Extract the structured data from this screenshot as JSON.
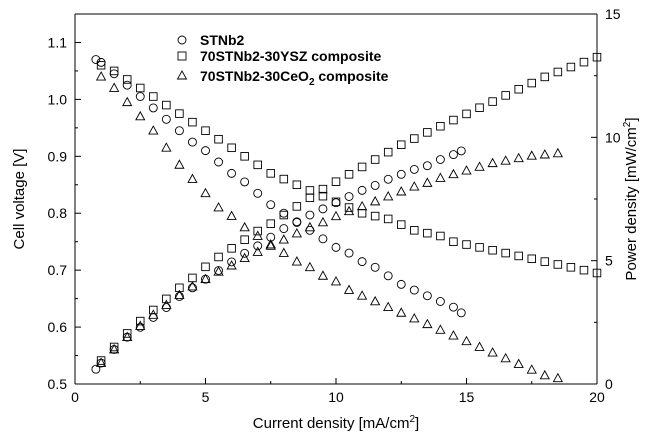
{
  "chart_data": {
    "type": "scatter",
    "xlabel": "Current density [mA/cm",
    "xlabel_sup": "2",
    "xlabel_end": "]",
    "ylabel_left": "Cell voltage [V]",
    "ylabel_right": "Power density [mW/cm",
    "ylabel_right_sup": "2",
    "ylabel_right_end": "]",
    "xlim": [
      0,
      20
    ],
    "ylim_left": [
      0.5,
      1.15
    ],
    "ylim_right": [
      0,
      15
    ],
    "x_ticks": [
      "0",
      "5",
      "10",
      "15",
      "20"
    ],
    "y_left_ticks": [
      "0.5",
      "0.6",
      "0.7",
      "0.8",
      "0.9",
      "1.0",
      "1.1"
    ],
    "y_right_ticks": [
      "0",
      "5",
      "10",
      "15"
    ],
    "grid": false,
    "legend_position": "top-left",
    "series": [
      {
        "name": "STNb2",
        "marker": "circle",
        "voltage": {
          "x": [
            0.8,
            1.0,
            1.5,
            2.0,
            2.5,
            3.0,
            3.5,
            4.0,
            4.5,
            5.0,
            5.5,
            6.0,
            6.5,
            7.0,
            7.5,
            8.0,
            8.5,
            9.0,
            9.5,
            10.0,
            10.5,
            11.0,
            11.5,
            12.0,
            12.5,
            13.0,
            13.5,
            14.0,
            14.5,
            14.8
          ],
          "y": [
            1.07,
            1.065,
            1.045,
            1.025,
            1.005,
            0.985,
            0.965,
            0.945,
            0.925,
            0.91,
            0.89,
            0.87,
            0.855,
            0.835,
            0.815,
            0.8,
            0.785,
            0.77,
            0.755,
            0.74,
            0.73,
            0.715,
            0.705,
            0.69,
            0.675,
            0.665,
            0.655,
            0.645,
            0.635,
            0.625
          ]
        },
        "power": {
          "x": [
            0.8,
            1.0,
            1.5,
            2.0,
            2.5,
            3.0,
            3.5,
            4.0,
            4.5,
            5.0,
            5.5,
            6.0,
            6.5,
            7.0,
            7.5,
            8.0,
            8.5,
            9.0,
            9.5,
            10.0,
            10.5,
            11.0,
            11.5,
            12.0,
            12.5,
            13.0,
            13.5,
            14.0,
            14.5,
            14.8
          ],
          "y": [
            0.6,
            0.85,
            1.4,
            1.9,
            2.3,
            2.7,
            3.1,
            3.55,
            3.9,
            4.25,
            4.6,
            4.95,
            5.3,
            5.6,
            5.95,
            6.3,
            6.55,
            6.85,
            7.1,
            7.35,
            7.6,
            7.85,
            8.05,
            8.3,
            8.5,
            8.7,
            8.85,
            9.1,
            9.3,
            9.45
          ]
        }
      },
      {
        "name": "70STNb2-30YSZ composite",
        "marker": "square",
        "voltage": {
          "x": [
            1.0,
            1.5,
            2.0,
            2.5,
            3.0,
            3.5,
            4.0,
            4.5,
            5.0,
            5.5,
            6.0,
            6.5,
            7.0,
            7.5,
            8.0,
            8.5,
            9.0,
            9.5,
            10.0,
            10.5,
            11.0,
            11.5,
            12.0,
            12.5,
            13.0,
            13.5,
            14.0,
            14.5,
            15.0,
            15.5,
            16.0,
            16.5,
            17.0,
            17.5,
            18.0,
            18.5,
            19.0,
            19.5,
            20.0
          ],
          "y": [
            1.06,
            1.05,
            1.035,
            1.02,
            1.005,
            0.99,
            0.975,
            0.96,
            0.945,
            0.93,
            0.915,
            0.9,
            0.885,
            0.87,
            0.86,
            0.85,
            0.84,
            0.83,
            0.82,
            0.81,
            0.8,
            0.795,
            0.79,
            0.78,
            0.77,
            0.765,
            0.76,
            0.75,
            0.745,
            0.74,
            0.735,
            0.73,
            0.725,
            0.72,
            0.715,
            0.71,
            0.705,
            0.7,
            0.695
          ]
        },
        "power": {
          "x": [
            1.0,
            1.5,
            2.0,
            2.5,
            3.0,
            3.5,
            4.0,
            4.5,
            5.0,
            5.5,
            6.0,
            6.5,
            7.0,
            7.5,
            8.0,
            8.5,
            9.0,
            9.5,
            10.0,
            10.5,
            11.0,
            11.5,
            12.0,
            12.5,
            13.0,
            13.5,
            14.0,
            14.5,
            15.0,
            15.5,
            16.0,
            16.5,
            17.0,
            17.5,
            18.0,
            18.5,
            19.0,
            19.5,
            20.0
          ],
          "y": [
            0.95,
            1.5,
            2.05,
            2.55,
            3.0,
            3.45,
            3.9,
            4.3,
            4.75,
            5.15,
            5.5,
            5.85,
            6.2,
            6.5,
            6.85,
            7.2,
            7.55,
            7.9,
            8.2,
            8.5,
            8.8,
            9.1,
            9.4,
            9.7,
            9.95,
            10.2,
            10.45,
            10.7,
            10.95,
            11.2,
            11.45,
            11.7,
            11.95,
            12.2,
            12.45,
            12.65,
            12.85,
            13.05,
            13.25
          ]
        }
      },
      {
        "name": "70STNb2-30CeO",
        "name_sub": "2",
        "name_end": " composite",
        "marker": "triangle",
        "voltage": {
          "x": [
            1.0,
            1.5,
            2.0,
            2.5,
            3.0,
            3.5,
            4.0,
            4.5,
            5.0,
            5.5,
            6.0,
            6.5,
            7.0,
            7.5,
            8.0,
            8.5,
            9.0,
            9.5,
            10.0,
            10.5,
            11.0,
            11.5,
            12.0,
            12.5,
            13.0,
            13.5,
            14.0,
            14.5,
            15.0,
            15.5,
            16.0,
            16.5,
            17.0,
            17.5,
            18.0,
            18.5
          ],
          "y": [
            1.04,
            1.02,
            0.995,
            0.97,
            0.945,
            0.915,
            0.885,
            0.86,
            0.835,
            0.81,
            0.795,
            0.775,
            0.76,
            0.745,
            0.73,
            0.715,
            0.705,
            0.69,
            0.68,
            0.665,
            0.655,
            0.645,
            0.635,
            0.625,
            0.615,
            0.605,
            0.595,
            0.585,
            0.575,
            0.565,
            0.555,
            0.545,
            0.535,
            0.525,
            0.515,
            0.51
          ]
        },
        "power": {
          "x": [
            1.0,
            1.5,
            2.0,
            2.5,
            3.0,
            3.5,
            4.0,
            4.5,
            5.0,
            5.5,
            6.0,
            6.5,
            7.0,
            7.5,
            8.0,
            8.5,
            9.0,
            9.5,
            10.0,
            10.5,
            11.0,
            11.5,
            12.0,
            12.5,
            13.0,
            13.5,
            14.0,
            14.5,
            15.0,
            15.5,
            16.0,
            16.5,
            17.0,
            17.5,
            18.0,
            18.5
          ],
          "y": [
            0.85,
            1.4,
            1.9,
            2.35,
            2.8,
            3.2,
            3.6,
            3.95,
            4.25,
            4.55,
            4.8,
            5.1,
            5.35,
            5.6,
            5.85,
            6.1,
            6.35,
            6.55,
            6.8,
            7.0,
            7.2,
            7.4,
            7.6,
            7.8,
            8.0,
            8.15,
            8.35,
            8.5,
            8.65,
            8.8,
            8.95,
            9.05,
            9.15,
            9.25,
            9.3,
            9.35
          ]
        }
      }
    ]
  }
}
